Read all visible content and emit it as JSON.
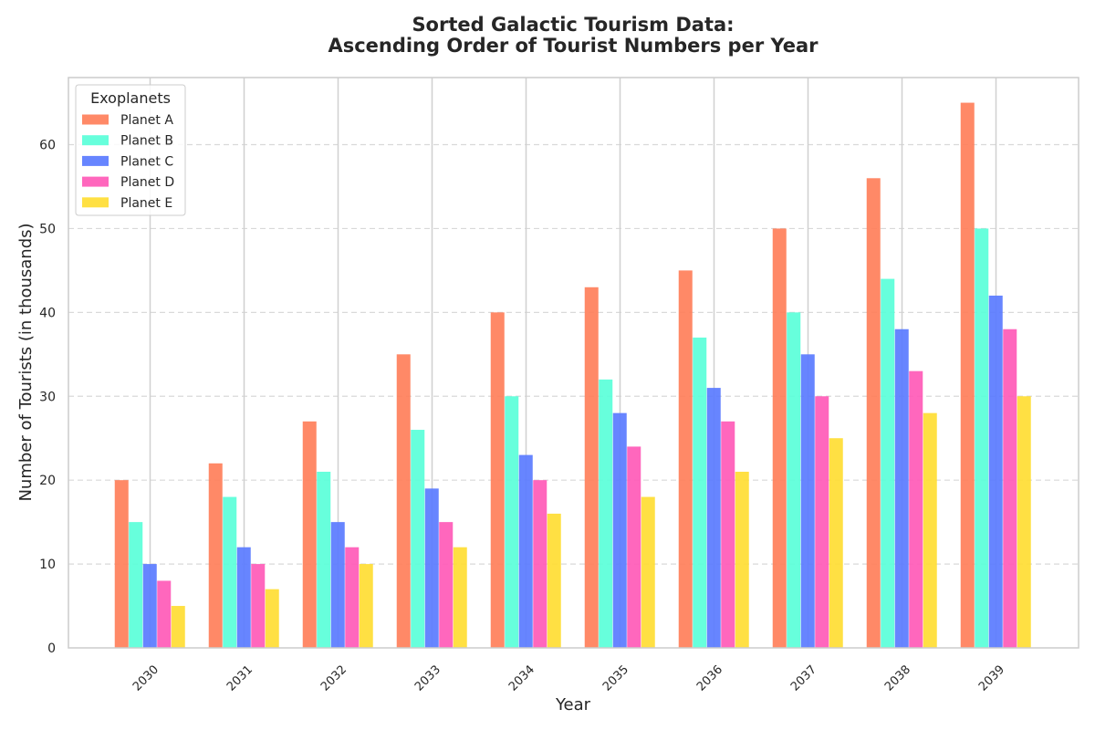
{
  "chart_data": {
    "type": "bar",
    "title_line1": "Sorted Galactic Tourism Data:",
    "title_line2": "Ascending Order of Tourist Numbers per Year",
    "xlabel": "Year",
    "ylabel": "Number of Tourists (in thousands)",
    "ylim": [
      0,
      68
    ],
    "yticks": [
      "0",
      "10",
      "20",
      "30",
      "40",
      "50",
      "60"
    ],
    "categories": [
      "2030",
      "2031",
      "2032",
      "2033",
      "2034",
      "2035",
      "2036",
      "2037",
      "2038",
      "2039"
    ],
    "legend_title": "Exoplanets",
    "legend_position": "top-left",
    "grid": "y-dashed, x-solid",
    "series": [
      {
        "name": "Planet A",
        "color": "#ff7f5a",
        "values": [
          20,
          22,
          27,
          35,
          40,
          43,
          45,
          50,
          56,
          65
        ]
      },
      {
        "name": "Planet B",
        "color": "#5affd9",
        "values": [
          15,
          18,
          21,
          26,
          30,
          32,
          37,
          40,
          44,
          50
        ]
      },
      {
        "name": "Planet C",
        "color": "#5a7bff",
        "values": [
          10,
          12,
          15,
          19,
          23,
          28,
          31,
          35,
          38,
          42
        ]
      },
      {
        "name": "Planet D",
        "color": "#ff5ab7",
        "values": [
          8,
          10,
          12,
          15,
          20,
          24,
          27,
          30,
          33,
          38
        ]
      },
      {
        "name": "Planet E",
        "color": "#ffdd33",
        "values": [
          5,
          7,
          10,
          12,
          16,
          18,
          21,
          25,
          28,
          30
        ]
      }
    ]
  }
}
